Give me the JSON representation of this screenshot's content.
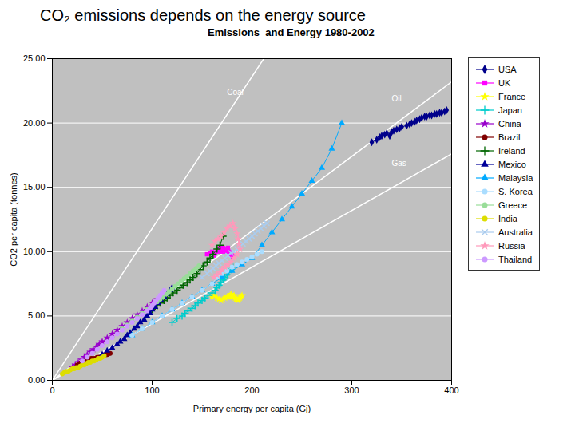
{
  "chart_data": {
    "type": "line",
    "title": "CO₂ emissions depends on the energy source",
    "subtitle": "Emissions  and Energy 1980-2002",
    "x_label": "Primary energy per capita (Gj)",
    "y_label": "CO2 per capita (tonnes)",
    "xlim": [
      0,
      400
    ],
    "ylim": [
      0,
      25
    ],
    "xticks": [
      0,
      100,
      200,
      300,
      400
    ],
    "yticks": [
      {
        "value": 0,
        "label": "0.00"
      },
      {
        "value": 5,
        "label": "5.00"
      },
      {
        "value": 10,
        "label": "10.00"
      },
      {
        "value": 15,
        "label": "15.00"
      },
      {
        "value": 20,
        "label": "20.00"
      },
      {
        "value": 25,
        "label": "25.00"
      }
    ],
    "grid": "y",
    "legend": "right",
    "reference_lines": [
      {
        "label": "Coal",
        "color": "#ffffff",
        "x": [
          0,
          400
        ],
        "values": [
          0,
          47.2
        ],
        "label_x": 175,
        "label_y": 22.0
      },
      {
        "label": "Oil",
        "color": "#ffffff",
        "x": [
          0,
          400
        ],
        "values": [
          0,
          23.2
        ],
        "label_x": 340,
        "label_y": 21.5
      },
      {
        "label": "Gas",
        "color": "#ffffff",
        "x": [
          0,
          400
        ],
        "values": [
          0,
          17.6
        ],
        "label_x": 340,
        "label_y": 16.5
      }
    ],
    "series": [
      {
        "name": "USA",
        "color": "#00008B",
        "marker": "diamond",
        "x": [
          320,
          325,
          328,
          330,
          333,
          335,
          338,
          340,
          342,
          345,
          348,
          350,
          355,
          358,
          360,
          363,
          365,
          368,
          370,
          373,
          375,
          378,
          380,
          383,
          385,
          388,
          390,
          393,
          395
        ],
        "values": [
          18.5,
          18.7,
          18.9,
          19.0,
          19.1,
          19.2,
          19.0,
          19.3,
          19.4,
          19.5,
          19.6,
          19.7,
          19.8,
          19.9,
          20.0,
          20.1,
          20.2,
          20.3,
          20.4,
          20.5,
          20.5,
          20.6,
          20.6,
          20.7,
          20.7,
          20.8,
          20.8,
          20.9,
          21.0
        ]
      },
      {
        "name": "UK",
        "color": "#ff00ff",
        "marker": "square",
        "x": [
          155,
          158,
          160,
          162,
          163,
          165,
          166,
          167,
          168,
          169,
          170,
          171,
          172,
          173,
          174,
          175,
          176,
          177,
          178,
          179,
          180,
          181
        ],
        "values": [
          9.8,
          9.9,
          10.0,
          9.7,
          9.9,
          10.0,
          10.1,
          10.2,
          10.3,
          10.0,
          10.1,
          10.3,
          10.2,
          10.0,
          10.1,
          10.2,
          10.3,
          10.0,
          9.9,
          9.8,
          9.7,
          9.6
        ]
      },
      {
        "name": "France",
        "color": "#ffff00",
        "marker": "star",
        "x": [
          160,
          162,
          165,
          167,
          169,
          171,
          173,
          175,
          177,
          178,
          179,
          180,
          181,
          182,
          183,
          184,
          185,
          186,
          187,
          188,
          189,
          190
        ],
        "values": [
          6.5,
          6.6,
          6.4,
          6.3,
          6.2,
          6.3,
          6.4,
          6.5,
          6.5,
          6.6,
          6.7,
          6.5,
          6.5,
          6.6,
          6.4,
          6.3,
          6.3,
          6.2,
          6.3,
          6.4,
          6.5,
          6.6
        ]
      },
      {
        "name": "Japan",
        "color": "#00cccc",
        "marker": "plus",
        "x": [
          120,
          125,
          130,
          133,
          136,
          140,
          143,
          146,
          150,
          153,
          156,
          160,
          163,
          165,
          167,
          169,
          171,
          173,
          175,
          177,
          179,
          181
        ],
        "values": [
          4.5,
          4.8,
          5.0,
          5.2,
          5.4,
          5.6,
          5.8,
          6.0,
          6.2,
          6.4,
          6.6,
          6.8,
          7.0,
          7.2,
          7.4,
          7.6,
          7.8,
          8.0,
          8.2,
          8.4,
          8.6,
          8.8
        ]
      },
      {
        "name": "China",
        "color": "#9900cc",
        "marker": "star",
        "x": [
          20,
          23,
          26,
          29,
          32,
          35,
          38,
          41,
          44,
          47,
          50,
          55,
          60,
          65,
          70,
          75,
          80,
          85,
          90,
          95,
          100,
          105
        ],
        "values": [
          1.0,
          1.2,
          1.4,
          1.6,
          1.8,
          2.0,
          2.2,
          2.4,
          2.6,
          2.8,
          3.0,
          3.3,
          3.6,
          3.9,
          4.2,
          4.5,
          4.8,
          5.1,
          5.4,
          5.7,
          6.0,
          6.3
        ]
      },
      {
        "name": "Brazil",
        "color": "#800000",
        "marker": "circle",
        "x": [
          25,
          27,
          29,
          31,
          33,
          35,
          37,
          39,
          41,
          43,
          45,
          47,
          49,
          50,
          51,
          52,
          53,
          54,
          55,
          56,
          57,
          58
        ],
        "values": [
          1.2,
          1.3,
          1.4,
          1.4,
          1.5,
          1.6,
          1.6,
          1.7,
          1.7,
          1.7,
          1.8,
          1.8,
          1.8,
          1.9,
          1.9,
          1.9,
          2.0,
          2.0,
          2.0,
          2.1,
          2.1,
          2.1
        ]
      },
      {
        "name": "Ireland",
        "color": "#006600",
        "marker": "plus",
        "x": [
          100,
          105,
          108,
          112,
          115,
          118,
          121,
          125,
          128,
          131,
          135,
          138,
          141,
          145,
          148,
          151,
          155,
          158,
          161,
          165,
          168,
          171
        ],
        "values": [
          5.5,
          5.8,
          6.0,
          6.2,
          6.4,
          6.6,
          6.8,
          7.0,
          7.2,
          7.4,
          7.6,
          7.8,
          8.0,
          8.3,
          8.6,
          8.9,
          9.2,
          9.5,
          9.8,
          10.2,
          10.5,
          11.2
        ]
      },
      {
        "name": "Mexico",
        "color": "#000099",
        "marker": "triangle",
        "x": [
          50,
          55,
          60,
          65,
          68,
          72,
          75,
          78,
          82,
          85,
          88,
          92,
          95,
          98,
          100,
          103,
          106,
          109,
          112,
          115,
          118,
          120
        ],
        "values": [
          2.0,
          2.3,
          2.5,
          2.8,
          3.0,
          3.2,
          3.5,
          3.7,
          4.0,
          4.2,
          4.5,
          4.7,
          5.0,
          5.2,
          5.5,
          5.7,
          6.0,
          6.2,
          6.5,
          6.7,
          7.0,
          7.2
        ]
      },
      {
        "name": "Malaysia",
        "color": "#00aaff",
        "marker": "triangle",
        "x": [
          80,
          90,
          100,
          110,
          120,
          130,
          140,
          150,
          160,
          170,
          180,
          190,
          200,
          210,
          220,
          230,
          240,
          250,
          260,
          270,
          280,
          290
        ],
        "values": [
          3.5,
          4.0,
          4.5,
          5.0,
          5.5,
          6.0,
          6.5,
          7.0,
          7.5,
          8.0,
          8.5,
          9.0,
          9.5,
          10.5,
          11.5,
          12.5,
          13.5,
          14.5,
          15.5,
          16.5,
          18.0,
          20.0
        ]
      },
      {
        "name": "S. Korea",
        "color": "#aaddff",
        "marker": "circle",
        "x": [
          80,
          90,
          100,
          110,
          120,
          130,
          140,
          150,
          160,
          165,
          170,
          175,
          180,
          185,
          190,
          195,
          200,
          205,
          210
        ],
        "values": [
          3.5,
          4.0,
          4.5,
          5.0,
          5.5,
          6.0,
          6.5,
          7.0,
          7.5,
          8.0,
          8.3,
          8.5,
          8.8,
          9.0,
          9.2,
          9.4,
          9.6,
          9.8,
          10.0
        ]
      },
      {
        "name": "Greece",
        "color": "#99dd99",
        "marker": "circle",
        "x": [
          70,
          75,
          80,
          85,
          90,
          95,
          100,
          105,
          108,
          111,
          114,
          117,
          120,
          123,
          126,
          129,
          132,
          135,
          138,
          141,
          144,
          147
        ],
        "values": [
          4.0,
          4.3,
          4.6,
          4.9,
          5.2,
          5.5,
          5.8,
          6.1,
          6.3,
          6.5,
          6.7,
          6.9,
          7.1,
          7.3,
          7.5,
          7.7,
          7.9,
          8.1,
          8.3,
          8.5,
          8.7,
          8.9
        ]
      },
      {
        "name": "India",
        "color": "#dddd00",
        "marker": "circle",
        "x": [
          10,
          12,
          14,
          16,
          18,
          20,
          22,
          24,
          26,
          28,
          30,
          32,
          34,
          36,
          38,
          40,
          42,
          44,
          46,
          48,
          50,
          52
        ],
        "values": [
          0.5,
          0.6,
          0.7,
          0.7,
          0.8,
          0.9,
          0.9,
          1.0,
          1.0,
          1.1,
          1.2,
          1.2,
          1.3,
          1.4,
          1.4,
          1.5,
          1.5,
          1.6,
          1.7,
          1.7,
          1.8,
          1.9
        ]
      },
      {
        "name": "Australia",
        "color": "#aaccee",
        "marker": "times",
        "x": [
          150,
          155,
          158,
          161,
          164,
          167,
          170,
          173,
          176,
          179,
          182,
          185,
          188,
          191,
          194,
          197,
          200,
          203,
          206,
          209,
          212,
          215
        ],
        "values": [
          8.0,
          8.3,
          8.5,
          8.7,
          8.9,
          9.1,
          9.3,
          9.5,
          9.7,
          9.9,
          10.0,
          10.2,
          10.4,
          10.6,
          10.8,
          11.0,
          11.2,
          11.4,
          11.6,
          11.8,
          12.0,
          12.2
        ]
      },
      {
        "name": "Russia",
        "color": "#ff99bb",
        "marker": "star",
        "x": [
          160,
          163,
          166,
          169,
          172,
          175,
          178,
          181,
          183,
          185,
          186,
          187,
          188,
          185,
          182,
          179,
          176,
          173,
          170,
          168,
          165,
          162
        ],
        "values": [
          10.5,
          10.8,
          11.0,
          11.2,
          11.5,
          11.8,
          12.0,
          12.2,
          11.8,
          11.4,
          11.0,
          10.6,
          10.2,
          9.8,
          9.5,
          9.2,
          9.0,
          8.8,
          8.6,
          8.4,
          8.2,
          8.0
        ]
      },
      {
        "name": "Thailand",
        "color": "#cc99ff",
        "marker": "circle",
        "x": [
          30,
          35,
          40,
          45,
          50,
          55,
          60,
          65,
          70,
          75,
          80,
          85,
          90,
          95,
          98,
          100,
          102,
          104,
          106,
          108,
          110,
          112
        ],
        "values": [
          1.5,
          1.8,
          2.1,
          2.4,
          2.7,
          3.0,
          3.3,
          3.6,
          3.9,
          4.2,
          4.5,
          4.8,
          5.1,
          5.4,
          5.6,
          5.8,
          6.0,
          6.2,
          6.4,
          6.6,
          6.8,
          7.0
        ]
      }
    ]
  }
}
